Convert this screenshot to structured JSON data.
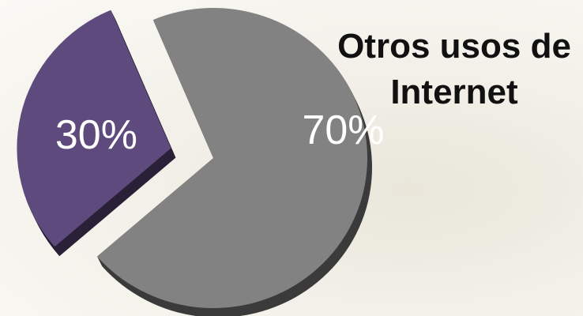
{
  "chart_data": {
    "type": "pie",
    "title": "Otros usos de Internet",
    "values": [
      30,
      70
    ],
    "value_labels": [
      "30%",
      "70%"
    ],
    "colors": [
      "#5e4a7d",
      "#828282"
    ]
  }
}
